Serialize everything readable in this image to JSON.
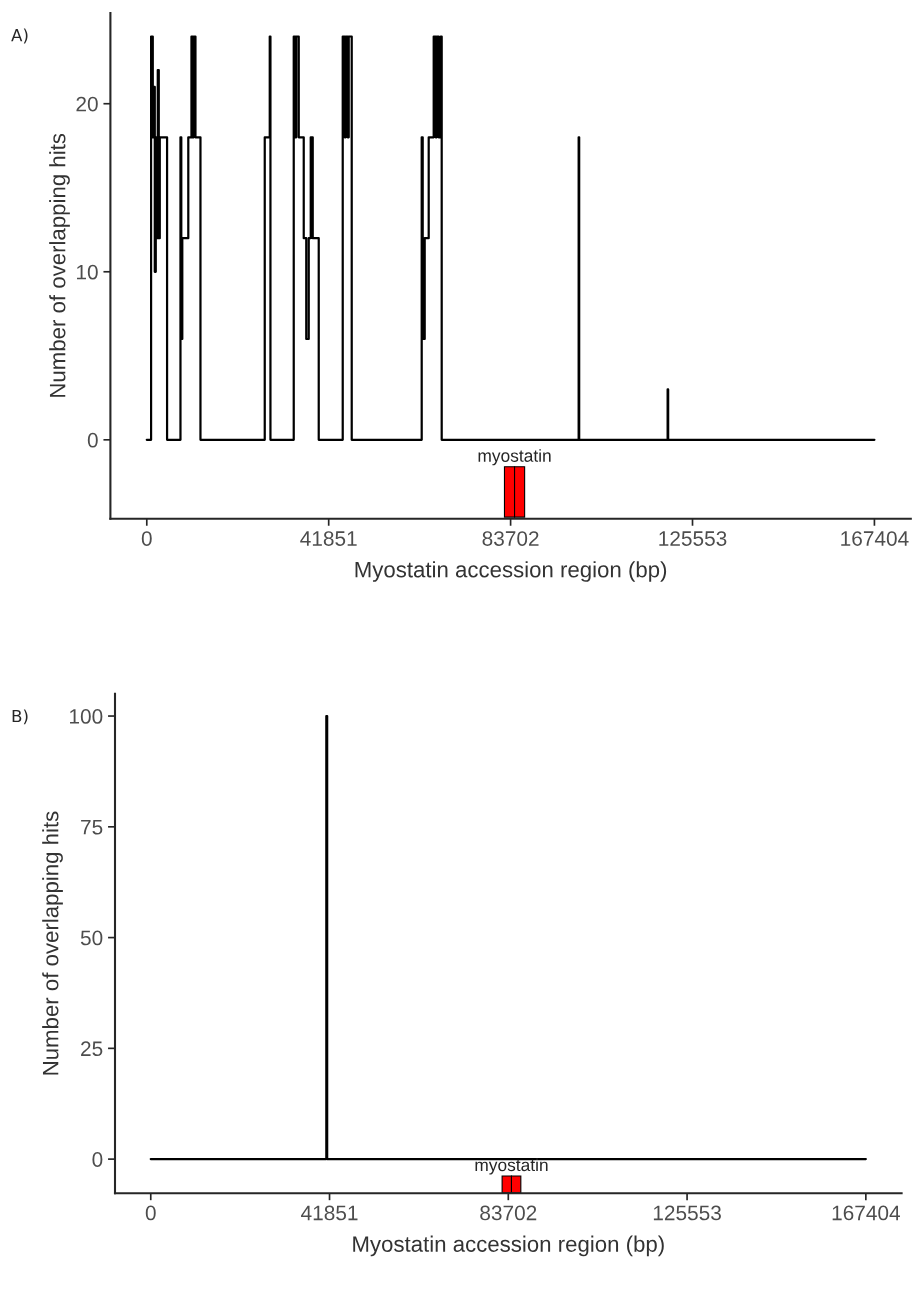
{
  "chart_data": [
    {
      "type": "line",
      "title": "A)",
      "xlabel": "Myostatin accession region (bp)",
      "ylabel": "Number of overlapping hits",
      "xlim": [
        -8370,
        175774
      ],
      "xticks": [
        0,
        41851,
        83702,
        125553,
        167404
      ],
      "ylim": [
        -4.7,
        25.4
      ],
      "yticks": [
        0,
        10,
        20
      ],
      "series": [
        {
          "color": "#000000",
          "x": [
            0,
            990,
            990,
            1380,
            1380,
            1610,
            1610,
            1840,
            1840,
            2070,
            2070,
            2300,
            2300,
            2530,
            2530,
            2760,
            2760,
            2990,
            2990,
            4670,
            4670,
            7750,
            7750,
            7940,
            7940,
            8170,
            8170,
            9550,
            9550,
            10280,
            10280,
            10580,
            10580,
            10810,
            10810,
            11200,
            11200,
            12350,
            12350,
            27140,
            27140,
            28290,
            28290,
            28450,
            28450,
            33810,
            33810,
            34160,
            34160,
            34390,
            34390,
            34960,
            34960,
            36110,
            36110,
            36690,
            36690,
            37260,
            37260,
            37720,
            37720,
            38180,
            38180,
            39560,
            39560,
            45080,
            45080,
            45540,
            45540,
            45770,
            45770,
            46230,
            46230,
            46460,
            46460,
            47150,
            47150,
            63250,
            63250,
            63480,
            63480,
            63940,
            63940,
            64860,
            64860,
            66010,
            66010,
            66470,
            66470,
            66700,
            66700,
            67160,
            67160,
            67620,
            67620,
            67850,
            67850,
            99360,
            99360,
            99480,
            99480,
            119830,
            119830,
            119950,
            119950,
            167404
          ],
          "values": [
            0,
            0,
            24,
            24,
            18,
            18,
            21,
            21,
            10,
            10,
            18,
            18,
            12,
            12,
            22,
            22,
            12,
            12,
            18,
            18,
            0,
            0,
            18,
            18,
            6,
            6,
            12,
            12,
            18,
            18,
            24,
            24,
            18,
            18,
            24,
            24,
            18,
            18,
            0,
            0,
            18,
            18,
            24,
            24,
            0,
            0,
            24,
            24,
            18,
            18,
            24,
            24,
            18,
            18,
            12,
            12,
            6,
            6,
            12,
            12,
            18,
            18,
            12,
            12,
            0,
            0,
            24,
            24,
            18,
            18,
            24,
            24,
            18,
            18,
            24,
            24,
            0,
            0,
            18,
            18,
            6,
            6,
            12,
            12,
            18,
            18,
            24,
            24,
            18,
            18,
            24,
            24,
            18,
            18,
            24,
            24,
            0,
            0,
            18,
            18,
            0,
            0,
            3,
            3,
            0,
            0
          ]
        },
        {
          "type": "bar",
          "color": "#ff0000",
          "x": [
            83450,
            85770
          ],
          "values": [
            3.0,
            3.0
          ],
          "base": [
            -4.6,
            -4.6
          ]
        }
      ],
      "annotations": [
        "myostatin"
      ]
    },
    {
      "type": "line",
      "title": "B)",
      "xlabel": "Myostatin accession region (bp)",
      "ylabel": "Number of overlapping hits",
      "xlim": [
        -8370,
        175774
      ],
      "xticks": [
        0,
        41851,
        83702,
        125553,
        167404
      ],
      "ylim": [
        -7.7,
        105
      ],
      "yticks": [
        0,
        25,
        50,
        75,
        100
      ],
      "series": [
        {
          "color": "#000000",
          "x": [
            0,
            41100,
            41100,
            41300,
            41300,
            167404
          ],
          "values": [
            0,
            0,
            100,
            100,
            0,
            0
          ]
        },
        {
          "type": "bar",
          "color": "#ff0000",
          "x": [
            83350,
            85540
          ],
          "values": [
            3.8,
            3.8
          ],
          "base": [
            -7.6,
            -7.6
          ]
        }
      ],
      "annotations": [
        "myostatin"
      ]
    }
  ]
}
